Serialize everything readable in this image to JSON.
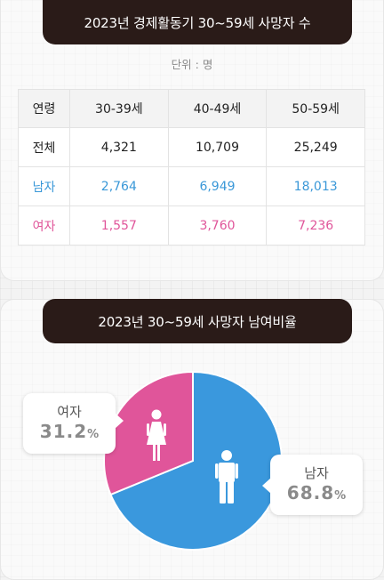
{
  "table_section": {
    "title": "2023년 경제활동기 30~59세 사망자 수",
    "unit": "단위 : 명",
    "headers": [
      "연령",
      "30-39세",
      "40-49세",
      "50-59세"
    ],
    "rows": [
      {
        "label": "전체",
        "values": [
          "4,321",
          "10,709",
          "25,249"
        ]
      },
      {
        "label": "남자",
        "values": [
          "2,764",
          "6,949",
          "18,013"
        ]
      },
      {
        "label": "여자",
        "values": [
          "1,557",
          "3,760",
          "7,236"
        ]
      }
    ]
  },
  "chart_section": {
    "title": "2023년 30~59세 사망자 남여비율",
    "female_label": "여자",
    "female_value": "31.2",
    "male_label": "남자",
    "male_value": "68.8",
    "pct_sign": "%"
  },
  "colors": {
    "male": "#3a98dd",
    "female": "#e0559a",
    "title_bg": "#2a1b18"
  },
  "icons": {
    "female": "female-person-icon",
    "male": "male-person-icon"
  },
  "chart_data": [
    {
      "type": "table",
      "title": "2023년 경제활동기 30~59세 사망자 수",
      "unit": "명",
      "columns": [
        "30-39세",
        "40-49세",
        "50-59세"
      ],
      "rows": [
        {
          "name": "전체",
          "values": [
            4321,
            10709,
            25249
          ]
        },
        {
          "name": "남자",
          "values": [
            2764,
            6949,
            18013
          ]
        },
        {
          "name": "여자",
          "values": [
            1557,
            3760,
            7236
          ]
        }
      ]
    },
    {
      "type": "pie",
      "title": "2023년 30~59세 사망자 남여비율",
      "slices": [
        {
          "name": "남자",
          "value": 68.8,
          "color": "#3a98dd"
        },
        {
          "name": "여자",
          "value": 31.2,
          "color": "#e0559a"
        }
      ]
    }
  ]
}
